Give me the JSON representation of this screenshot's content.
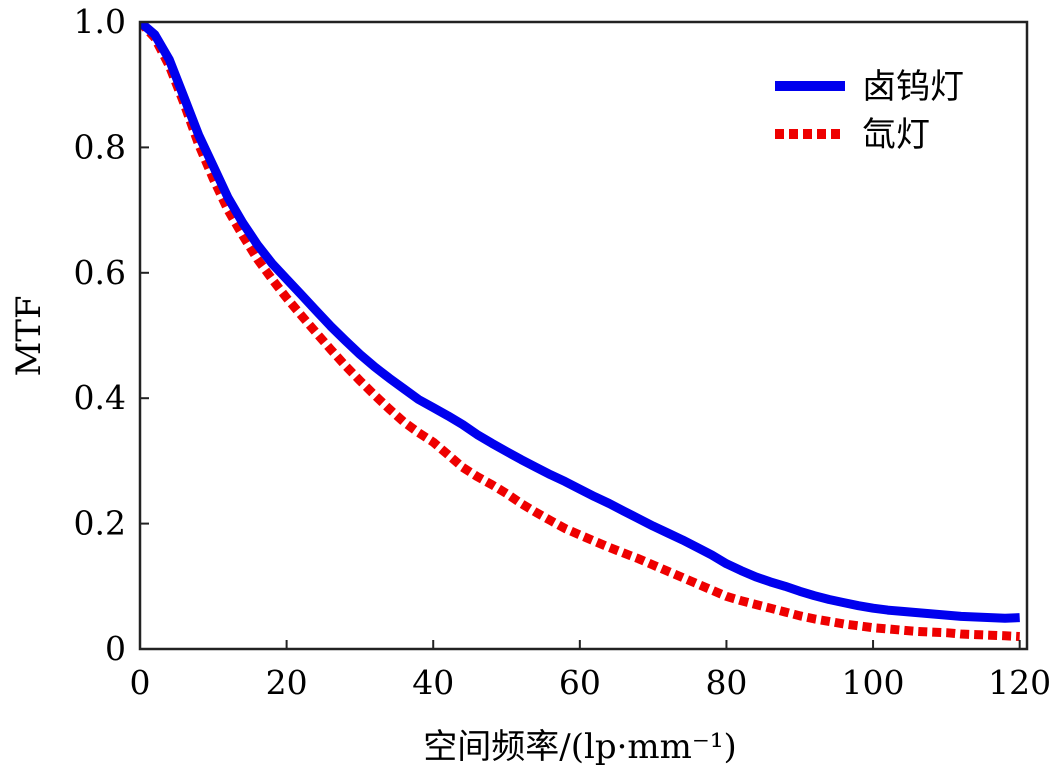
{
  "chart_data": {
    "type": "line",
    "title": "",
    "xlabel": "空间频率/(lp·mm⁻¹)",
    "ylabel": "MTF",
    "xlim": [
      0,
      121
    ],
    "ylim": [
      0,
      1.0
    ],
    "xticks": [
      0,
      20,
      40,
      60,
      80,
      100,
      120
    ],
    "xtick_labels": [
      "0",
      "20",
      "40",
      "60",
      "80",
      "100",
      "120"
    ],
    "yticks": [
      0,
      0.2,
      0.4,
      0.6,
      0.8,
      1.0
    ],
    "ytick_labels": [
      "0",
      "0.2",
      "0.4",
      "0.6",
      "0.8",
      "1.0"
    ],
    "grid": false,
    "legend_position": "top-right",
    "series": [
      {
        "name": "卤钨灯",
        "color": "#0000ee",
        "style": "solid",
        "x": [
          0,
          2,
          4,
          6,
          8,
          10,
          12,
          14,
          16,
          18,
          20,
          22,
          24,
          26,
          28,
          30,
          32,
          34,
          36,
          38,
          40,
          42,
          44,
          46,
          48,
          50,
          52,
          54,
          56,
          58,
          60,
          62,
          64,
          66,
          68,
          70,
          72,
          74,
          76,
          78,
          80,
          82,
          84,
          86,
          88,
          90,
          92,
          94,
          96,
          98,
          100,
          102,
          104,
          106,
          108,
          110,
          112,
          114,
          116,
          118,
          120
        ],
        "y": [
          1.0,
          0.98,
          0.94,
          0.88,
          0.82,
          0.77,
          0.72,
          0.68,
          0.645,
          0.615,
          0.59,
          0.565,
          0.54,
          0.515,
          0.492,
          0.47,
          0.45,
          0.432,
          0.415,
          0.398,
          0.385,
          0.372,
          0.358,
          0.342,
          0.328,
          0.315,
          0.302,
          0.29,
          0.278,
          0.267,
          0.255,
          0.243,
          0.232,
          0.22,
          0.208,
          0.196,
          0.185,
          0.174,
          0.162,
          0.15,
          0.136,
          0.125,
          0.115,
          0.107,
          0.1,
          0.092,
          0.085,
          0.079,
          0.074,
          0.069,
          0.065,
          0.062,
          0.06,
          0.058,
          0.056,
          0.054,
          0.052,
          0.051,
          0.05,
          0.049,
          0.05
        ]
      },
      {
        "name": "氙灯",
        "color": "#ee0000",
        "style": "dotted",
        "x": [
          0,
          2,
          4,
          6,
          8,
          10,
          12,
          14,
          16,
          18,
          20,
          22,
          24,
          26,
          28,
          30,
          32,
          34,
          36,
          38,
          40,
          42,
          44,
          46,
          48,
          50,
          52,
          54,
          56,
          58,
          60,
          62,
          64,
          66,
          68,
          70,
          72,
          74,
          76,
          78,
          80,
          82,
          84,
          86,
          88,
          90,
          92,
          94,
          96,
          98,
          100,
          102,
          104,
          106,
          108,
          110,
          112,
          114,
          116,
          118,
          120
        ],
        "y": [
          1.0,
          0.975,
          0.93,
          0.87,
          0.805,
          0.75,
          0.7,
          0.66,
          0.622,
          0.59,
          0.56,
          0.532,
          0.505,
          0.478,
          0.452,
          0.428,
          0.405,
          0.383,
          0.362,
          0.345,
          0.33,
          0.31,
          0.29,
          0.275,
          0.262,
          0.248,
          0.232,
          0.218,
          0.205,
          0.192,
          0.182,
          0.172,
          0.162,
          0.153,
          0.144,
          0.134,
          0.124,
          0.114,
          0.104,
          0.094,
          0.084,
          0.077,
          0.071,
          0.065,
          0.059,
          0.053,
          0.048,
          0.044,
          0.04,
          0.037,
          0.034,
          0.032,
          0.03,
          0.028,
          0.027,
          0.026,
          0.024,
          0.023,
          0.022,
          0.021,
          0.02
        ]
      }
    ]
  }
}
